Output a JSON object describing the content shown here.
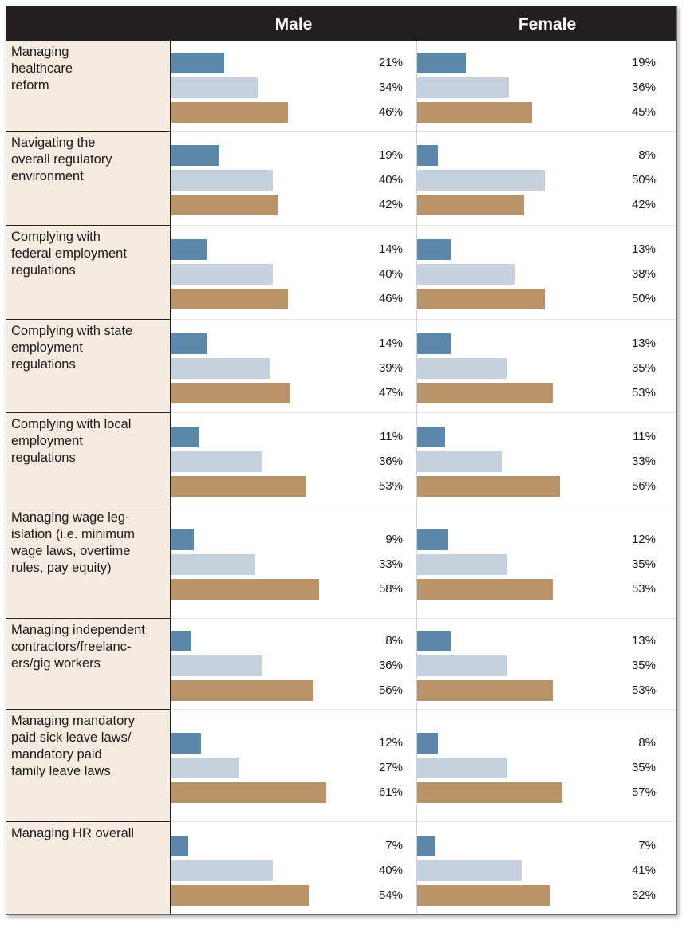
{
  "chart_data": {
    "type": "bar",
    "orientation": "horizontal",
    "title": "",
    "panels": [
      "Male",
      "Female"
    ],
    "colors": [
      "#5c89ab",
      "#c5d2de",
      "#ba9469"
    ],
    "categories": [
      "Managing\nhealthcare\nreform",
      "Navigating the\noverall regulatory\nenvironment",
      "Complying with\nfederal employment\nregulations",
      "Complying with state\nemployment\nregulations",
      "Complying with local\nemployment\nregulations",
      "Managing wage leg-\nislation (i.e. minimum\nwage laws, overtime\nrules, pay equity)",
      "Managing independent\ncontractors/freelanc-\ners/gig workers",
      "Managing mandatory\npaid sick leave laws/\nmandatory paid\nfamily leave laws",
      "Managing HR overall"
    ],
    "male": [
      [
        21,
        34,
        46
      ],
      [
        19,
        40,
        42
      ],
      [
        14,
        40,
        46
      ],
      [
        14,
        39,
        47
      ],
      [
        11,
        36,
        53
      ],
      [
        9,
        33,
        58
      ],
      [
        8,
        36,
        56
      ],
      [
        12,
        27,
        61
      ],
      [
        7,
        40,
        54
      ]
    ],
    "female": [
      [
        19,
        36,
        45
      ],
      [
        8,
        50,
        42
      ],
      [
        13,
        38,
        50
      ],
      [
        13,
        35,
        53
      ],
      [
        11,
        33,
        56
      ],
      [
        12,
        35,
        53
      ],
      [
        13,
        35,
        53
      ],
      [
        8,
        35,
        57
      ],
      [
        7,
        41,
        52
      ]
    ],
    "value_suffix": "%"
  }
}
